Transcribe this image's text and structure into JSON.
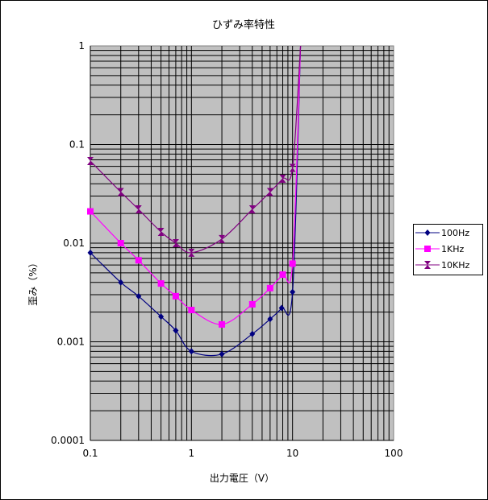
{
  "chart_data": {
    "type": "line",
    "title": "ひずみ率特性",
    "xlabel": "出力電圧（V）",
    "ylabel": "歪み（%）",
    "x_scale": "log",
    "y_scale": "log",
    "xlim": [
      0.1,
      100
    ],
    "ylim": [
      0.0001,
      1
    ],
    "x_ticks": [
      "0.1",
      "1",
      "10",
      "100"
    ],
    "y_ticks": [
      "1",
      "0.1",
      "0.01",
      "0.001",
      "0.0001"
    ],
    "grid": true,
    "plot_background": "#c0c0c0",
    "legend_position": "right",
    "series": [
      {
        "name": "100Hz",
        "color": "#000080",
        "marker": "diamond",
        "x": [
          0.1,
          0.2,
          0.3,
          0.5,
          0.7,
          1,
          2,
          4,
          6,
          7.8,
          10,
          12
        ],
        "y": [
          0.008,
          0.004,
          0.0029,
          0.0018,
          0.0013,
          0.0008,
          0.00075,
          0.0012,
          0.0017,
          0.0022,
          0.0032,
          1.0
        ]
      },
      {
        "name": "1KHz",
        "color": "#ff00ff",
        "marker": "square",
        "x": [
          0.1,
          0.2,
          0.3,
          0.5,
          0.7,
          1,
          2,
          4,
          6,
          8,
          10,
          12
        ],
        "y": [
          0.021,
          0.01,
          0.0067,
          0.0039,
          0.0029,
          0.0021,
          0.0015,
          0.0024,
          0.0035,
          0.0048,
          0.0062,
          1.0
        ]
      },
      {
        "name": "10KHz",
        "color": "#800080",
        "marker": "hourglass",
        "x": [
          0.1,
          0.2,
          0.3,
          0.5,
          0.7,
          1,
          2,
          4,
          6,
          8,
          10,
          12
        ],
        "y": [
          0.068,
          0.033,
          0.022,
          0.013,
          0.01,
          0.008,
          0.011,
          0.022,
          0.033,
          0.045,
          0.058,
          1.0
        ]
      }
    ]
  }
}
